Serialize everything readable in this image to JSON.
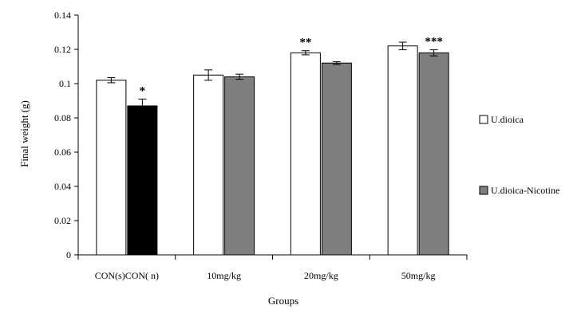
{
  "chart_data": {
    "type": "bar",
    "title": "",
    "xlabel": "Groups",
    "ylabel": "Final weight (g)",
    "ylim": [
      0,
      0.14
    ],
    "yticks": [
      "0",
      "0.02",
      "0.04",
      "0.06",
      "0.08",
      "0.1",
      "0.12",
      "0.14"
    ],
    "grid": false,
    "legend_position": "right",
    "categories": [
      "CON(s)CON( n)",
      "10mg/kg",
      "20mg/kg",
      "50mg/kg"
    ],
    "series": [
      {
        "name": "U.dioica",
        "color": "#ffffff",
        "values": [
          0.102,
          0.105,
          0.118,
          0.122
        ],
        "errors": [
          0.0015,
          0.003,
          0.0012,
          0.0022
        ],
        "annotations": [
          "",
          "",
          "**",
          ""
        ]
      },
      {
        "name": "U.dioica-Nicotine",
        "color": "#7f7f7f",
        "control_color": "#000000",
        "values": [
          0.087,
          0.104,
          0.112,
          0.118
        ],
        "errors": [
          0.004,
          0.0015,
          0.0008,
          0.0018
        ],
        "annotations": [
          "*",
          "",
          "",
          "***"
        ]
      }
    ]
  }
}
